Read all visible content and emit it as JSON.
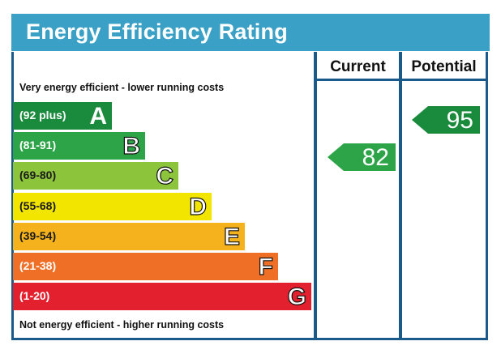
{
  "header": {
    "title": "Energy Efficiency Rating"
  },
  "columns": {
    "current": "Current",
    "potential": "Potential"
  },
  "legend": {
    "top": "Very energy efficient - lower running costs",
    "bottom": "Not energy efficient - higher running costs"
  },
  "chart_data": {
    "type": "bar",
    "bands": [
      {
        "letter": "A",
        "range": "(92 plus)",
        "color": "#1a8a3c"
      },
      {
        "letter": "B",
        "range": "(81-91)",
        "color": "#2ea448"
      },
      {
        "letter": "C",
        "range": "(69-80)",
        "color": "#8cc43c"
      },
      {
        "letter": "D",
        "range": "(55-68)",
        "color": "#f2e500"
      },
      {
        "letter": "E",
        "range": "(39-54)",
        "color": "#f6b21c"
      },
      {
        "letter": "F",
        "range": "(21-38)",
        "color": "#ef6f26"
      },
      {
        "letter": "G",
        "range": "(1-20)",
        "color": "#e3202e"
      }
    ],
    "current": {
      "value": "82",
      "band": "B",
      "color": "#2ea448"
    },
    "potential": {
      "value": "95",
      "band": "A",
      "color": "#1a8a3c"
    }
  }
}
